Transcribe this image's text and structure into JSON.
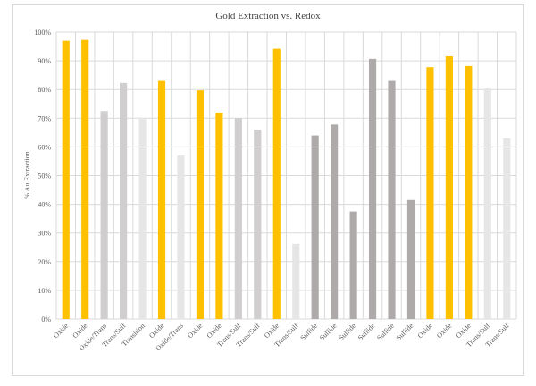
{
  "chart_data": {
    "type": "bar",
    "title": "Gold Extraction vs. Redox",
    "xlabel": "",
    "ylabel": "% Au Extraction",
    "ylim": [
      0,
      100
    ],
    "yticks": [
      "0%",
      "10%",
      "20%",
      "30%",
      "40%",
      "50%",
      "60%",
      "70%",
      "80%",
      "90%",
      "100%"
    ],
    "grid": true,
    "categories": [
      "Oxide",
      "Oxide",
      "Oxide/Trans",
      "Trans/Sulf",
      "Transition",
      "Oxide",
      "Oxide/Trans",
      "Oxide",
      "Oxide",
      "Trans/Sulf",
      "Trans/Sulf",
      "Oxide",
      "Trans/Sulf",
      "Sulfide",
      "Sulfide",
      "Sulfide",
      "Sulfide",
      "Sulfide",
      "Sulfide",
      "Oxide",
      "Oxide",
      "Oxide",
      "Trans/Sulf",
      "Trans/Sulf"
    ],
    "values": [
      97,
      97.3,
      72.5,
      82.3,
      70.2,
      83,
      57,
      79.7,
      72,
      70,
      66,
      94.2,
      26.2,
      64,
      67.8,
      37.5,
      90.7,
      83,
      41.5,
      87.8,
      91.6,
      88.2,
      80.7,
      63
    ],
    "colors": [
      "#FFC000",
      "#FFC000",
      "#D0CECE",
      "#D0CECE",
      "#E7E6E6",
      "#FFC000",
      "#E7E6E6",
      "#FFC000",
      "#FFC000",
      "#D0CECE",
      "#D0CECE",
      "#FFC000",
      "#E7E6E6",
      "#AEAAAA",
      "#AEAAAA",
      "#AEAAAA",
      "#AEAAAA",
      "#AEAAAA",
      "#AEAAAA",
      "#FFC000",
      "#FFC000",
      "#FFC000",
      "#E7E6E6",
      "#E7E6E6"
    ]
  }
}
